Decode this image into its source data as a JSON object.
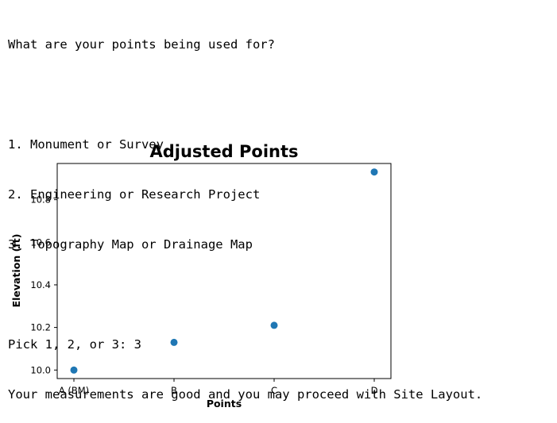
{
  "console": {
    "prompt_question": "What are your points being used for?",
    "blank1": "",
    "option1": "1. Monument or Survey",
    "option2": "2. Engineering or Research Project",
    "option3": "3. Topography Map or Drainage Map",
    "blank2": "",
    "pick_prompt": "Pick 1, 2, or 3: 3",
    "result_message": "Your measurements are good and you may proceed with Site Layout."
  },
  "chart_data": {
    "type": "scatter",
    "title": "Adjusted Points",
    "xlabel": "Points",
    "ylabel": "Elevation (ft)",
    "categories": [
      "A (BM)",
      "B",
      "C",
      "D"
    ],
    "values": [
      10.0,
      10.13,
      10.21,
      10.93
    ],
    "ylim": [
      9.96,
      10.97
    ],
    "yticks": [
      10.0,
      10.2,
      10.4,
      10.6,
      10.8
    ],
    "ytick_labels": [
      "10.0",
      "10.2",
      "10.4",
      "10.6",
      "10.8"
    ],
    "grid": false,
    "point_color": "#1f77b4"
  }
}
